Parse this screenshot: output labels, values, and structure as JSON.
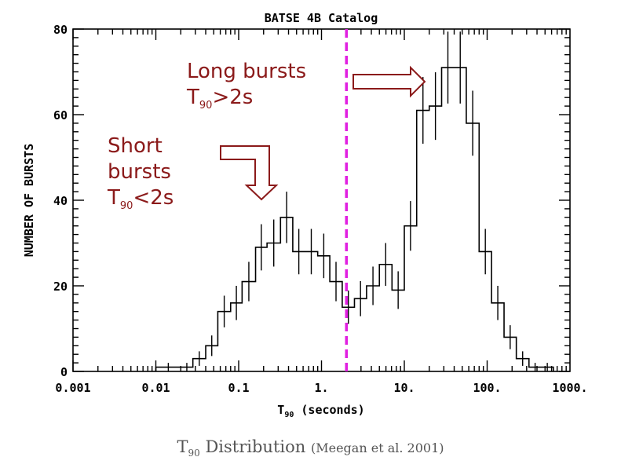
{
  "chart_data": {
    "type": "bar",
    "title": "BATSE 4B Catalog",
    "xlabel": "T90 (seconds)",
    "ylabel": "NUMBER OF BURSTS",
    "x_scale": "log",
    "xlim": [
      0.001,
      1000
    ],
    "ylim": [
      0,
      80
    ],
    "x_ticks": [
      "0.001",
      "0.01",
      "0.1",
      "1.",
      "10.",
      "100.",
      "1000."
    ],
    "y_ticks": [
      "0",
      "20",
      "40",
      "60",
      "80"
    ],
    "bin_edges": [
      0.01,
      0.02,
      0.028,
      0.04,
      0.056,
      0.08,
      0.11,
      0.16,
      0.22,
      0.32,
      0.45,
      0.63,
      0.9,
      1.26,
      1.78,
      2.5,
      3.5,
      5.0,
      7.1,
      10.0,
      14.1,
      20.0,
      28.2,
      40.0,
      56.0,
      80.0,
      113.0,
      160.0,
      225.0,
      320.0,
      450.0,
      630.0
    ],
    "values": [
      1,
      1,
      3,
      6,
      14,
      16,
      21,
      29,
      30,
      36,
      28,
      28,
      27,
      21,
      15,
      17,
      20,
      25,
      19,
      34,
      61,
      62,
      71,
      71,
      58,
      28,
      16,
      8,
      3,
      1,
      1
    ],
    "errors": [
      1,
      1,
      1.7,
      2.4,
      3.7,
      4,
      4.6,
      5.4,
      5.5,
      6,
      5.3,
      5.3,
      5.2,
      4.6,
      3.9,
      4.1,
      4.5,
      5,
      4.4,
      5.8,
      7.8,
      7.9,
      8.4,
      8.4,
      7.6,
      5.3,
      4,
      2.8,
      1.7,
      1,
      1
    ],
    "vline": {
      "x": 2.0,
      "color": "#e020e0"
    }
  },
  "annotations": {
    "long_line1": "Long bursts",
    "long_T": "T",
    "long_sub": "90",
    "long_rest": ">2s",
    "short_line1": "Short",
    "short_line2": "bursts",
    "short_T": "T",
    "short_sub": "90",
    "short_rest": "<2s",
    "color": "#8b1a1a"
  },
  "axis_label_parts": {
    "x_T": "T",
    "x_sub": "90",
    "x_rest": " (seconds)"
  },
  "caption": {
    "T": "T",
    "sub": "90",
    "main": "Distribution",
    "cite": "(Meegan et al. 2001)"
  }
}
